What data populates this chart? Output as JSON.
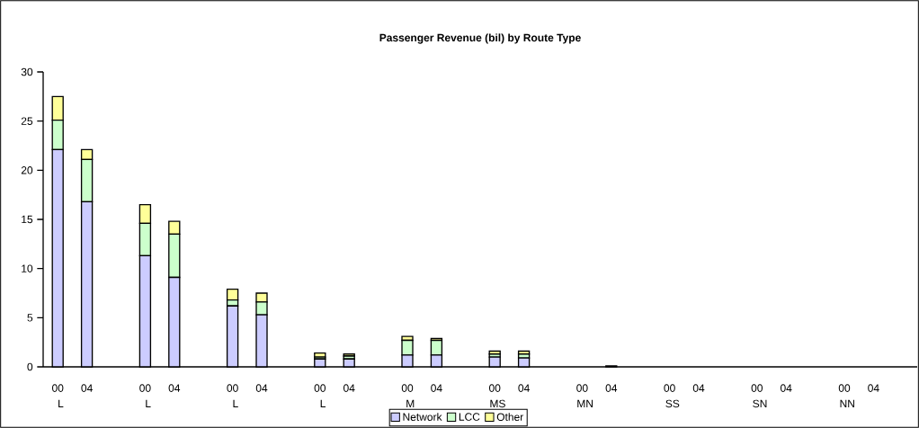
{
  "chart_data": {
    "type": "bar",
    "stacked": true,
    "title": "Passenger Revenue (bil) by Route Type",
    "categories": [
      "00",
      "04",
      null,
      "00",
      "04",
      null,
      "00",
      "04",
      null,
      "00",
      "04",
      null,
      "00",
      "04",
      null,
      "00",
      "04",
      null,
      "00",
      "04",
      null,
      "00",
      "04",
      null,
      "00",
      "04",
      null,
      "00",
      "04",
      null
    ],
    "series": [
      {
        "name": "Network",
        "color": "#ccccff",
        "values": [
          22.1,
          16.8,
          0,
          11.3,
          9.1,
          0,
          6.2,
          5.3,
          0,
          0.8,
          0.8,
          0,
          1.2,
          1.2,
          0,
          1.0,
          0.9,
          0,
          0,
          0.1,
          0,
          0,
          0,
          0,
          0,
          0,
          0,
          0,
          0,
          0
        ]
      },
      {
        "name": "LCC",
        "color": "#ccffcc",
        "values": [
          3.0,
          4.3,
          0,
          3.3,
          4.4,
          0,
          0.6,
          1.3,
          0,
          0.2,
          0.3,
          0,
          1.5,
          1.5,
          0,
          0.3,
          0.4,
          0,
          0,
          0,
          0,
          0,
          0,
          0,
          0,
          0,
          0,
          0,
          0,
          0
        ]
      },
      {
        "name": "Other",
        "color": "#ffff99",
        "values": [
          2.4,
          1.0,
          0,
          1.9,
          1.3,
          0,
          1.1,
          0.9,
          0,
          0.4,
          0.2,
          0,
          0.4,
          0.2,
          0,
          0.3,
          0.3,
          0,
          0,
          0,
          0,
          0,
          0,
          0,
          0,
          0,
          0,
          0,
          0,
          0
        ]
      }
    ],
    "annotations": [
      "L",
      "L",
      "L",
      "L",
      "M",
      "MS",
      "MN",
      "SS",
      "SN",
      "NN"
    ],
    "ylim": [
      0,
      30
    ],
    "yticks": [
      0,
      5,
      10,
      15,
      20,
      25,
      30
    ],
    "grid": false,
    "legend": "bottom"
  }
}
